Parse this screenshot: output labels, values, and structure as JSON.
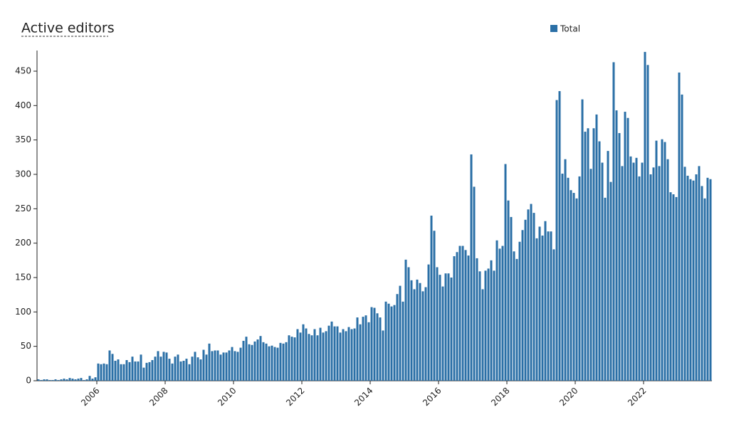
{
  "chart_data": {
    "type": "bar",
    "title": "Active editors",
    "series": [
      {
        "name": "Total",
        "color": "#2a6fa6",
        "values": [
          2,
          1,
          2,
          2,
          1,
          1,
          2,
          1,
          2,
          3,
          2,
          4,
          3,
          2,
          3,
          4,
          1,
          2,
          7,
          3,
          5,
          25,
          24,
          25,
          24,
          44,
          39,
          29,
          31,
          24,
          24,
          30,
          27,
          35,
          28,
          28,
          38,
          19,
          26,
          27,
          30,
          35,
          43,
          35,
          42,
          41,
          32,
          25,
          35,
          38,
          28,
          29,
          32,
          24,
          35,
          42,
          34,
          31,
          45,
          38,
          54,
          43,
          44,
          44,
          38,
          41,
          41,
          44,
          49,
          43,
          42,
          48,
          58,
          64,
          53,
          52,
          57,
          60,
          65,
          56,
          54,
          50,
          51,
          49,
          48,
          55,
          54,
          56,
          66,
          64,
          63,
          75,
          70,
          82,
          76,
          68,
          66,
          75,
          66,
          77,
          70,
          72,
          80,
          86,
          79,
          79,
          70,
          75,
          72,
          78,
          75,
          76,
          92,
          82,
          93,
          95,
          85,
          107,
          106,
          98,
          92,
          73,
          115,
          112,
          108,
          110,
          126,
          138,
          115,
          176,
          165,
          146,
          133,
          147,
          142,
          130,
          136,
          169,
          240,
          218,
          165,
          154,
          137,
          156,
          156,
          150,
          181,
          187,
          196,
          196,
          190,
          182,
          329,
          282,
          178,
          159,
          133,
          160,
          163,
          175,
          160,
          204,
          192,
          196,
          315,
          262,
          238,
          188,
          177,
          202,
          219,
          234,
          249,
          257,
          244,
          207,
          224,
          211,
          232,
          217,
          217,
          191,
          408,
          421,
          301,
          322,
          295,
          277,
          273,
          265,
          297,
          409,
          362,
          367,
          308,
          367,
          387,
          348,
          317,
          266,
          334,
          289,
          463,
          393,
          360,
          312,
          391,
          382,
          326,
          317,
          324,
          297,
          317,
          478,
          459,
          300,
          310,
          349,
          312,
          351,
          347,
          322,
          274,
          271,
          267,
          448,
          416,
          311,
          298,
          293,
          291,
          300,
          312,
          283,
          265,
          295,
          293
        ]
      }
    ],
    "x": [
      2004.25,
      2004.333,
      2004.417,
      2004.5,
      2004.583,
      2004.667,
      2004.75,
      2004.833,
      2004.917,
      2005,
      2005.083,
      2005.167,
      2005.25,
      2005.333,
      2005.417,
      2005.5,
      2005.583,
      2005.667,
      2005.75,
      2005.833,
      2005.917,
      2006,
      2006.083,
      2006.167,
      2006.25,
      2006.333,
      2006.417,
      2006.5,
      2006.583,
      2006.667,
      2006.75,
      2006.833,
      2006.917,
      2007,
      2007.083,
      2007.167,
      2007.25,
      2007.333,
      2007.417,
      2007.5,
      2007.583,
      2007.667,
      2007.75,
      2007.833,
      2007.917,
      2008,
      2008.083,
      2008.167,
      2008.25,
      2008.333,
      2008.417,
      2008.5,
      2008.583,
      2008.667,
      2008.75,
      2008.833,
      2008.917,
      2009,
      2009.083,
      2009.167,
      2009.25,
      2009.333,
      2009.417,
      2009.5,
      2009.583,
      2009.667,
      2009.75,
      2009.833,
      2009.917,
      2010,
      2010.083,
      2010.167,
      2010.25,
      2010.333,
      2010.417,
      2010.5,
      2010.583,
      2010.667,
      2010.75,
      2010.833,
      2010.917,
      2011,
      2011.083,
      2011.167,
      2011.25,
      2011.333,
      2011.417,
      2011.5,
      2011.583,
      2011.667,
      2011.75,
      2011.833,
      2011.917,
      2012,
      2012.083,
      2012.167,
      2012.25,
      2012.333,
      2012.417,
      2012.5,
      2012.583,
      2012.667,
      2012.75,
      2012.833,
      2012.917,
      2013,
      2013.083,
      2013.167,
      2013.25,
      2013.333,
      2013.417,
      2013.5,
      2013.583,
      2013.667,
      2013.75,
      2013.833,
      2013.917,
      2014,
      2014.083,
      2014.167,
      2014.25,
      2014.333,
      2014.417,
      2014.5,
      2014.583,
      2014.667,
      2014.75,
      2014.833,
      2014.917,
      2015,
      2015.083,
      2015.167,
      2015.25,
      2015.333,
      2015.417,
      2015.5,
      2015.583,
      2015.667,
      2015.75,
      2015.833,
      2015.917,
      2016,
      2016.083,
      2016.167,
      2016.25,
      2016.333,
      2016.417,
      2016.5,
      2016.583,
      2016.667,
      2016.75,
      2016.833,
      2016.917,
      2017,
      2017.083,
      2017.167,
      2017.25,
      2017.333,
      2017.417,
      2017.5,
      2017.583,
      2017.667,
      2017.75,
      2017.833,
      2017.917,
      2018,
      2018.083,
      2018.167,
      2018.25,
      2018.333,
      2018.417,
      2018.5,
      2018.583,
      2018.667,
      2018.75,
      2018.833,
      2018.917,
      2019,
      2019.083,
      2019.167,
      2019.25,
      2019.333,
      2019.417,
      2019.5,
      2019.583,
      2019.667,
      2019.75,
      2019.833,
      2019.917,
      2020,
      2020.083,
      2020.167,
      2020.25,
      2020.333,
      2020.417,
      2020.5,
      2020.583,
      2020.667,
      2020.75,
      2020.833,
      2020.917,
      2021,
      2021.083,
      2021.167,
      2021.25,
      2021.333,
      2021.417,
      2021.5,
      2021.583,
      2021.667,
      2021.75,
      2021.833,
      2021.917,
      2022,
      2022.083,
      2022.167,
      2022.25,
      2022.333,
      2022.417,
      2022.5,
      2022.583,
      2022.667,
      2022.75,
      2022.833,
      2022.917,
      2023,
      2023.083,
      2023.167,
      2023.25,
      2023.333,
      2023.417,
      2023.5,
      2023.583,
      2023.667,
      2023.75,
      2023.833,
      2023.917
    ],
    "xlim": [
      2004.25,
      2024
    ],
    "xticks": [
      2006,
      2008,
      2010,
      2012,
      2014,
      2016,
      2018,
      2020,
      2022
    ],
    "ylim": [
      0,
      480
    ],
    "yticks": [
      0,
      50,
      100,
      150,
      200,
      250,
      300,
      350,
      400,
      450
    ],
    "grid": false,
    "legend": "top-right"
  }
}
